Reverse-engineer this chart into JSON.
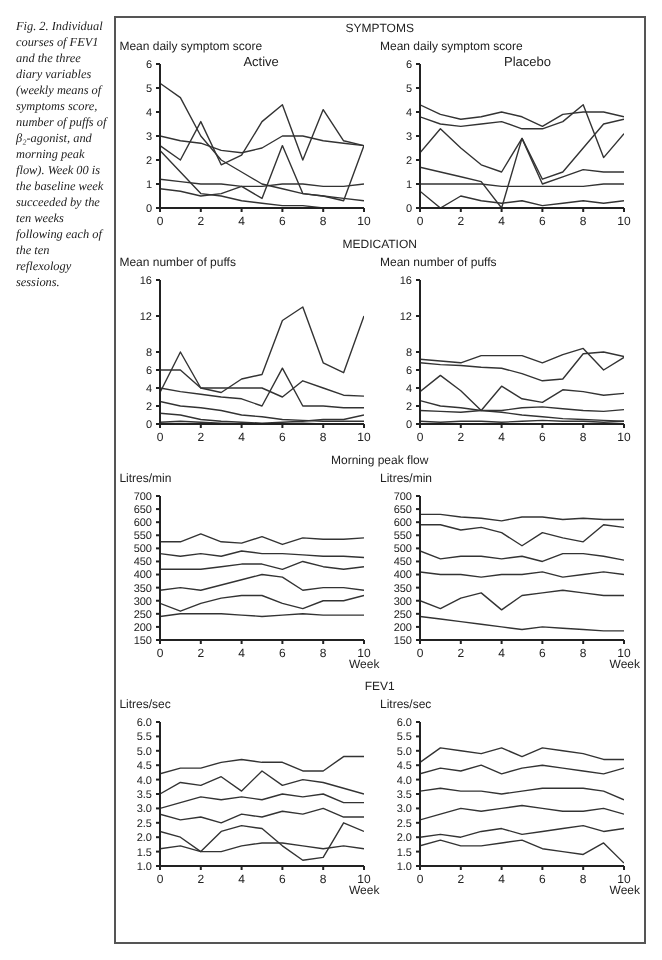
{
  "chart_data": [
    {
      "type": "line",
      "subtitle": "SYMPTOMS",
      "title": "Active",
      "ylabel": "Mean daily symptom score",
      "annotations": [
        "Fig. 2. Individual courses of FEV1 and the three diary variables (weekly means of symptoms score, number of puffs of β₂-agonist, and morning peak flow). Week 00 is the baseline week succeeded by the ten weeks following each of the ten reflexology sessions."
      ],
      "marker": "none",
      "x": [
        0,
        1,
        2,
        3,
        4,
        5,
        6,
        7,
        8,
        9,
        10
      ],
      "xlim": [
        0,
        10
      ],
      "xticks": [
        0,
        2,
        4,
        6,
        8,
        10
      ],
      "ylim": [
        0,
        6
      ],
      "yticks": [
        0,
        1,
        2,
        3,
        4,
        5,
        6
      ],
      "series": [
        {
          "color": "#333333",
          "values": [
            5.2,
            4.6,
            3.0,
            2.0,
            1.5,
            1.0,
            0.8,
            0.6,
            0.5,
            0.4,
            0.3
          ]
        },
        {
          "color": "#333333",
          "values": [
            3.0,
            2.8,
            2.7,
            2.4,
            2.3,
            2.5,
            3.0,
            3.0,
            2.8,
            2.7,
            2.6
          ]
        },
        {
          "color": "#333333",
          "values": [
            2.6,
            2.0,
            3.6,
            1.8,
            2.2,
            3.6,
            4.3,
            2.0,
            4.1,
            2.8,
            2.6
          ]
        },
        {
          "color": "#333333",
          "values": [
            1.2,
            1.1,
            1.0,
            1.0,
            0.9,
            0.9,
            1.0,
            1.0,
            0.9,
            0.9,
            1.0
          ]
        },
        {
          "color": "#333333",
          "values": [
            2.4,
            1.5,
            0.6,
            0.5,
            0.3,
            0.2,
            0.1,
            0.1,
            0.0,
            0.0,
            0.0
          ]
        },
        {
          "color": "#333333",
          "values": [
            0.8,
            0.7,
            0.5,
            0.6,
            0.9,
            0.4,
            2.6,
            0.6,
            0.5,
            0.3,
            2.6
          ]
        }
      ]
    },
    {
      "type": "line",
      "title": "Placebo",
      "ylabel": "Mean daily symptom score",
      "marker": "none",
      "x": [
        0,
        1,
        2,
        3,
        4,
        5,
        6,
        7,
        8,
        9,
        10
      ],
      "xlim": [
        0,
        10
      ],
      "xticks": [
        0,
        2,
        4,
        6,
        8,
        10
      ],
      "ylim": [
        0,
        6
      ],
      "yticks": [
        0,
        1,
        2,
        3,
        4,
        5,
        6
      ],
      "series": [
        {
          "color": "#333333",
          "values": [
            4.3,
            3.9,
            3.7,
            3.8,
            4.0,
            3.8,
            3.4,
            3.9,
            4.0,
            4.0,
            3.8
          ]
        },
        {
          "color": "#333333",
          "values": [
            3.8,
            3.5,
            3.4,
            3.5,
            3.6,
            3.3,
            3.3,
            3.6,
            4.3,
            2.1,
            3.1
          ]
        },
        {
          "color": "#333333",
          "values": [
            2.3,
            3.3,
            2.5,
            1.8,
            1.5,
            2.9,
            1.2,
            1.5,
            2.5,
            3.5,
            3.7
          ]
        },
        {
          "color": "#333333",
          "values": [
            1.7,
            1.5,
            1.3,
            1.1,
            0.0,
            2.9,
            1.0,
            1.3,
            1.6,
            1.5,
            1.5
          ]
        },
        {
          "color": "#333333",
          "values": [
            1.0,
            1.0,
            1.0,
            1.0,
            0.9,
            0.9,
            0.9,
            0.9,
            0.9,
            1.0,
            1.0
          ]
        },
        {
          "color": "#333333",
          "values": [
            0.7,
            0.0,
            0.5,
            0.3,
            0.2,
            0.3,
            0.1,
            0.2,
            0.3,
            0.2,
            0.3
          ]
        }
      ]
    },
    {
      "type": "line",
      "subtitle": "MEDICATION",
      "ylabel": "Mean number of puffs",
      "marker": "none",
      "x": [
        0,
        1,
        2,
        3,
        4,
        5,
        6,
        7,
        8,
        9,
        10
      ],
      "xlim": [
        0,
        10
      ],
      "xticks": [
        0,
        2,
        4,
        6,
        8,
        10
      ],
      "ylim": [
        0,
        16
      ],
      "yticks": [
        0,
        2,
        4,
        6,
        8,
        12,
        16
      ],
      "series": [
        {
          "color": "#333333",
          "values": [
            6.0,
            6.0,
            4.0,
            3.5,
            5.0,
            5.5,
            11.5,
            13.0,
            6.8,
            5.7,
            12.0
          ]
        },
        {
          "color": "#333333",
          "values": [
            3.5,
            8.0,
            4.0,
            4.0,
            4.0,
            4.0,
            3.0,
            4.8,
            4.0,
            3.2,
            3.1
          ]
        },
        {
          "color": "#333333",
          "values": [
            4.0,
            3.6,
            3.3,
            3.0,
            2.8,
            2.0,
            6.2,
            2.0,
            2.0,
            1.8,
            1.8
          ]
        },
        {
          "color": "#333333",
          "values": [
            2.5,
            2.0,
            1.8,
            1.5,
            1.0,
            0.8,
            0.5,
            0.4,
            0.3,
            0.3,
            0.3
          ]
        },
        {
          "color": "#333333",
          "values": [
            1.2,
            1.0,
            0.5,
            0.3,
            0.2,
            0.1,
            0.2,
            0.3,
            0.5,
            0.5,
            1.0
          ]
        },
        {
          "color": "#333333",
          "values": [
            0.2,
            0.3,
            0.2,
            0.1,
            0.0,
            0.0,
            0.0,
            0.1,
            0.0,
            0.0,
            0.0
          ]
        }
      ]
    },
    {
      "type": "line",
      "ylabel": "Mean number of puffs",
      "marker": "none",
      "x": [
        0,
        1,
        2,
        3,
        4,
        5,
        6,
        7,
        8,
        9,
        10
      ],
      "xlim": [
        0,
        10
      ],
      "xticks": [
        0,
        2,
        4,
        6,
        8,
        10
      ],
      "ylim": [
        0,
        16
      ],
      "yticks": [
        0,
        2,
        4,
        6,
        8,
        12,
        16
      ],
      "series": [
        {
          "color": "#333333",
          "values": [
            7.2,
            7.0,
            6.8,
            7.6,
            7.6,
            7.6,
            6.8,
            7.7,
            8.4,
            6.0,
            7.4
          ]
        },
        {
          "color": "#333333",
          "values": [
            6.8,
            6.6,
            6.5,
            6.3,
            6.2,
            5.6,
            4.8,
            5.0,
            7.8,
            8.0,
            7.5
          ]
        },
        {
          "color": "#333333",
          "values": [
            3.6,
            5.4,
            3.7,
            1.5,
            4.2,
            2.8,
            2.4,
            3.8,
            3.6,
            3.2,
            3.4
          ]
        },
        {
          "color": "#333333",
          "values": [
            2.6,
            2.0,
            1.8,
            1.5,
            1.3,
            1.0,
            0.8,
            0.6,
            0.5,
            0.4,
            0.3
          ]
        },
        {
          "color": "#333333",
          "values": [
            1.5,
            1.4,
            1.3,
            1.5,
            1.5,
            1.8,
            1.9,
            1.7,
            1.5,
            1.4,
            1.6
          ]
        },
        {
          "color": "#333333",
          "values": [
            0.3,
            0.2,
            0.3,
            0.3,
            0.2,
            0.3,
            0.4,
            0.3,
            0.3,
            0.2,
            0.3
          ]
        }
      ]
    },
    {
      "type": "line",
      "subtitle": "Morning peak flow",
      "ylabel": "Litres/min",
      "xlabel": "Week",
      "marker": "none",
      "x": [
        0,
        1,
        2,
        3,
        4,
        5,
        6,
        7,
        8,
        9,
        10
      ],
      "xlim": [
        0,
        10
      ],
      "xticks": [
        0,
        2,
        4,
        6,
        8,
        10
      ],
      "ylim": [
        150,
        700
      ],
      "yticks": [
        150,
        200,
        250,
        300,
        350,
        400,
        450,
        500,
        550,
        600,
        650,
        700
      ],
      "series": [
        {
          "color": "#333333",
          "values": [
            525,
            525,
            555,
            525,
            520,
            545,
            515,
            540,
            535,
            535,
            540
          ]
        },
        {
          "color": "#333333",
          "values": [
            480,
            470,
            480,
            470,
            490,
            480,
            480,
            475,
            470,
            470,
            465
          ]
        },
        {
          "color": "#333333",
          "values": [
            420,
            420,
            420,
            430,
            440,
            440,
            420,
            450,
            430,
            420,
            430
          ]
        },
        {
          "color": "#333333",
          "values": [
            340,
            350,
            340,
            360,
            380,
            400,
            390,
            340,
            350,
            350,
            340
          ]
        },
        {
          "color": "#333333",
          "values": [
            290,
            260,
            290,
            310,
            320,
            320,
            290,
            270,
            300,
            300,
            320
          ]
        },
        {
          "color": "#333333",
          "values": [
            240,
            250,
            250,
            250,
            245,
            240,
            245,
            250,
            245,
            245,
            245
          ]
        }
      ]
    },
    {
      "type": "line",
      "ylabel": "Litres/min",
      "xlabel": "Week",
      "marker": "none",
      "x": [
        0,
        1,
        2,
        3,
        4,
        5,
        6,
        7,
        8,
        9,
        10
      ],
      "xlim": [
        0,
        10
      ],
      "xticks": [
        0,
        2,
        4,
        6,
        8,
        10
      ],
      "ylim": [
        150,
        700
      ],
      "yticks": [
        150,
        200,
        250,
        300,
        350,
        400,
        450,
        500,
        550,
        600,
        650,
        700
      ],
      "series": [
        {
          "color": "#333333",
          "values": [
            630,
            630,
            620,
            615,
            605,
            620,
            620,
            610,
            615,
            610,
            610
          ]
        },
        {
          "color": "#333333",
          "values": [
            590,
            590,
            570,
            580,
            560,
            510,
            560,
            540,
            525,
            590,
            580
          ]
        },
        {
          "color": "#333333",
          "values": [
            490,
            460,
            470,
            470,
            460,
            470,
            450,
            480,
            480,
            470,
            455
          ]
        },
        {
          "color": "#333333",
          "values": [
            410,
            400,
            400,
            390,
            400,
            400,
            410,
            390,
            400,
            410,
            400
          ]
        },
        {
          "color": "#333333",
          "values": [
            300,
            270,
            310,
            330,
            265,
            320,
            330,
            340,
            330,
            320,
            320
          ]
        },
        {
          "color": "#333333",
          "values": [
            240,
            230,
            220,
            210,
            200,
            190,
            200,
            195,
            190,
            185,
            185
          ]
        }
      ]
    },
    {
      "type": "line",
      "subtitle": "FEV1",
      "ylabel": "Litres/sec",
      "xlabel": "Week",
      "marker": "none",
      "x": [
        0,
        1,
        2,
        3,
        4,
        5,
        6,
        7,
        8,
        9,
        10
      ],
      "xlim": [
        0,
        10
      ],
      "xticks": [
        0,
        2,
        4,
        6,
        8,
        10
      ],
      "ylim": [
        1,
        6
      ],
      "yticks": [
        {
          "value": 1,
          "label": "1.0"
        },
        1.5,
        {
          "value": 2,
          "label": "2.0"
        },
        2.5,
        {
          "value": 3,
          "label": "3.0"
        },
        3.5,
        {
          "value": 4,
          "label": "4.0"
        },
        4.5,
        {
          "value": 5,
          "label": "5.0"
        },
        5.5,
        {
          "value": 6,
          "label": "6.0"
        }
      ],
      "series": [
        {
          "color": "#333333",
          "values": [
            4.2,
            4.4,
            4.4,
            4.6,
            4.7,
            4.6,
            4.6,
            4.3,
            4.3,
            4.8,
            4.8
          ]
        },
        {
          "color": "#333333",
          "values": [
            3.5,
            3.9,
            3.8,
            4.1,
            3.6,
            4.3,
            3.8,
            4.0,
            3.9,
            3.7,
            3.5
          ]
        },
        {
          "color": "#333333",
          "values": [
            3.0,
            3.2,
            3.4,
            3.3,
            3.4,
            3.3,
            3.5,
            3.4,
            3.5,
            3.2,
            3.2
          ]
        },
        {
          "color": "#333333",
          "values": [
            2.8,
            2.6,
            2.7,
            2.5,
            2.8,
            2.7,
            2.9,
            2.8,
            3.0,
            2.7,
            2.7
          ]
        },
        {
          "color": "#333333",
          "values": [
            2.2,
            2.0,
            1.5,
            2.2,
            2.4,
            2.3,
            1.7,
            1.2,
            1.3,
            2.5,
            2.2
          ]
        },
        {
          "color": "#333333",
          "values": [
            1.6,
            1.7,
            1.5,
            1.5,
            1.7,
            1.8,
            1.8,
            1.7,
            1.6,
            1.7,
            1.6
          ]
        }
      ]
    },
    {
      "type": "line",
      "ylabel": "Litres/sec",
      "xlabel": "Week",
      "marker": "none",
      "x": [
        0,
        1,
        2,
        3,
        4,
        5,
        6,
        7,
        8,
        9,
        10
      ],
      "xlim": [
        0,
        10
      ],
      "xticks": [
        0,
        2,
        4,
        6,
        8,
        10
      ],
      "ylim": [
        1,
        6
      ],
      "yticks": [
        {
          "value": 1,
          "label": "1.0"
        },
        1.5,
        {
          "value": 2,
          "label": "2.0"
        },
        2.5,
        {
          "value": 3,
          "label": "3.0"
        },
        3.5,
        {
          "value": 4,
          "label": "4.0"
        },
        4.5,
        {
          "value": 5,
          "label": "5.0"
        },
        5.5,
        {
          "value": 6,
          "label": "6.0"
        }
      ],
      "series": [
        {
          "color": "#333333",
          "values": [
            4.6,
            5.1,
            5.0,
            4.9,
            5.1,
            4.8,
            5.1,
            5.0,
            4.9,
            4.7,
            4.7
          ]
        },
        {
          "color": "#333333",
          "values": [
            4.2,
            4.4,
            4.3,
            4.5,
            4.2,
            4.4,
            4.5,
            4.4,
            4.3,
            4.2,
            4.4
          ]
        },
        {
          "color": "#333333",
          "values": [
            3.6,
            3.7,
            3.6,
            3.6,
            3.5,
            3.6,
            3.7,
            3.7,
            3.7,
            3.6,
            3.3
          ]
        },
        {
          "color": "#333333",
          "values": [
            2.6,
            2.8,
            3.0,
            2.9,
            3.0,
            3.1,
            3.0,
            2.9,
            2.9,
            3.0,
            2.8
          ]
        },
        {
          "color": "#333333",
          "values": [
            2.0,
            2.1,
            2.0,
            2.2,
            2.3,
            2.1,
            2.2,
            2.3,
            2.4,
            2.2,
            2.3
          ]
        },
        {
          "color": "#333333",
          "values": [
            1.7,
            1.9,
            1.7,
            1.7,
            1.8,
            1.9,
            1.6,
            1.5,
            1.4,
            1.8,
            1.1
          ]
        }
      ]
    }
  ]
}
